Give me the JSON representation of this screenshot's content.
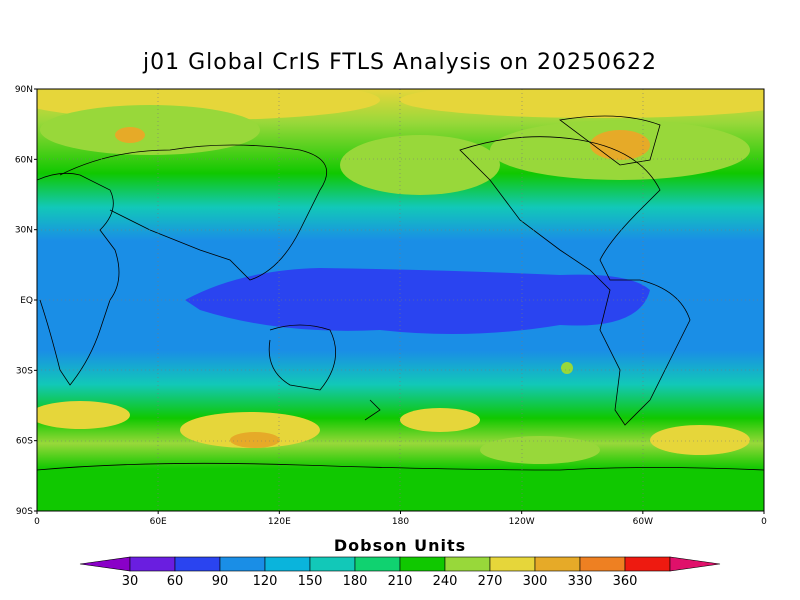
{
  "title": "j01 Global CrIS FTLS Analysis on 20250622",
  "map": {
    "lat_labels": [
      "90N",
      "60N",
      "30N",
      "EQ",
      "30S",
      "60S",
      "90S"
    ],
    "lon_labels": [
      "0",
      "60E",
      "120E",
      "180",
      "120W",
      "60W",
      "0"
    ],
    "lat_values": [
      90,
      60,
      30,
      0,
      -30,
      -60,
      -90
    ],
    "lon_values": [
      0,
      60,
      120,
      180,
      240,
      300,
      360
    ],
    "graticule": "dotted"
  },
  "colorbar": {
    "title": "Dobson Units",
    "labels": [
      "30",
      "60",
      "90",
      "120",
      "150",
      "180",
      "210",
      "240",
      "270",
      "300",
      "330",
      "360"
    ],
    "colors": [
      "#8a00c8",
      "#6a1ee0",
      "#2a44f0",
      "#1a8ee6",
      "#0ab4dc",
      "#12c8b8",
      "#10d270",
      "#10c800",
      "#98d83a",
      "#e6d63a",
      "#e6aa28",
      "#ee8022",
      "#ee1a10",
      "#e0106a"
    ],
    "extend": "both"
  }
}
